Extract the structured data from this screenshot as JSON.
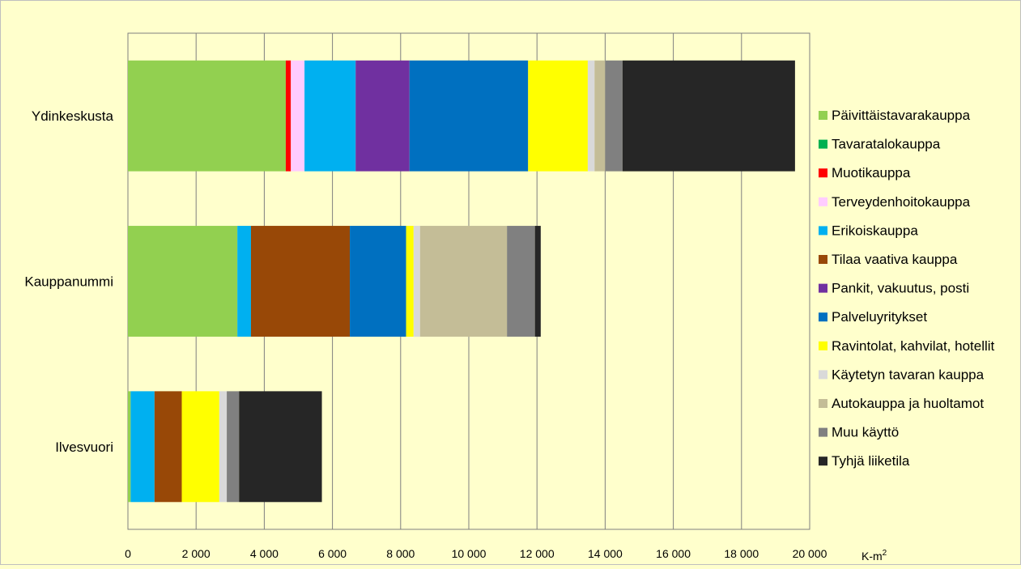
{
  "chart_data": {
    "type": "bar",
    "orientation": "horizontal",
    "stacked": true,
    "categories": [
      "Ydinkeskusta",
      "Kauppanummi",
      "Ilvesvuori"
    ],
    "xlabel": "K-m²",
    "xlim": [
      0,
      20000
    ],
    "xticks": [
      0,
      2000,
      4000,
      6000,
      8000,
      10000,
      12000,
      14000,
      16000,
      18000,
      20000
    ],
    "xtick_labels": [
      "0",
      "2 000",
      "4 000",
      "6 000",
      "8 000",
      "10 000",
      "12 000",
      "14 000",
      "16 000",
      "18 000",
      "20 000"
    ],
    "grid": "vertical",
    "legend_position": "right",
    "series": [
      {
        "name": "Päivittäistavarakauppa",
        "color": "#92d050",
        "values": [
          4630,
          3210,
          80
        ]
      },
      {
        "name": "Tavaratalokauppa",
        "color": "#00b050",
        "values": [
          0,
          0,
          0
        ]
      },
      {
        "name": "Muotikauppa",
        "color": "#ff0000",
        "values": [
          150,
          0,
          0
        ]
      },
      {
        "name": "Terveydenhoitokauppa",
        "color": "#ffccff",
        "values": [
          400,
          0,
          0
        ]
      },
      {
        "name": "Erikoiskauppa",
        "color": "#00b0f0",
        "values": [
          1500,
          400,
          700
        ]
      },
      {
        "name": "Tilaa vaativa kauppa",
        "color": "#984807",
        "values": [
          0,
          2900,
          800
        ]
      },
      {
        "name": "Pankit, vakuutus, posti",
        "color": "#7030a0",
        "values": [
          1580,
          0,
          0
        ]
      },
      {
        "name": "Palveluyritykset",
        "color": "#0070c0",
        "values": [
          3480,
          1650,
          0
        ]
      },
      {
        "name": "Ravintolat, kahvilat, hotellit",
        "color": "#ffff00",
        "values": [
          1750,
          220,
          1100
        ]
      },
      {
        "name": "Käytetyn tavaran kauppa",
        "color": "#d9d9d9",
        "values": [
          200,
          190,
          220
        ]
      },
      {
        "name": "Autokauppa ja huoltamot",
        "color": "#c4bd97",
        "values": [
          310,
          2550,
          0
        ]
      },
      {
        "name": "Muu käyttö",
        "color": "#808080",
        "values": [
          510,
          820,
          360
        ]
      },
      {
        "name": "Tyhjä liiketila",
        "color": "#262626",
        "values": [
          5060,
          170,
          2430
        ]
      }
    ]
  }
}
